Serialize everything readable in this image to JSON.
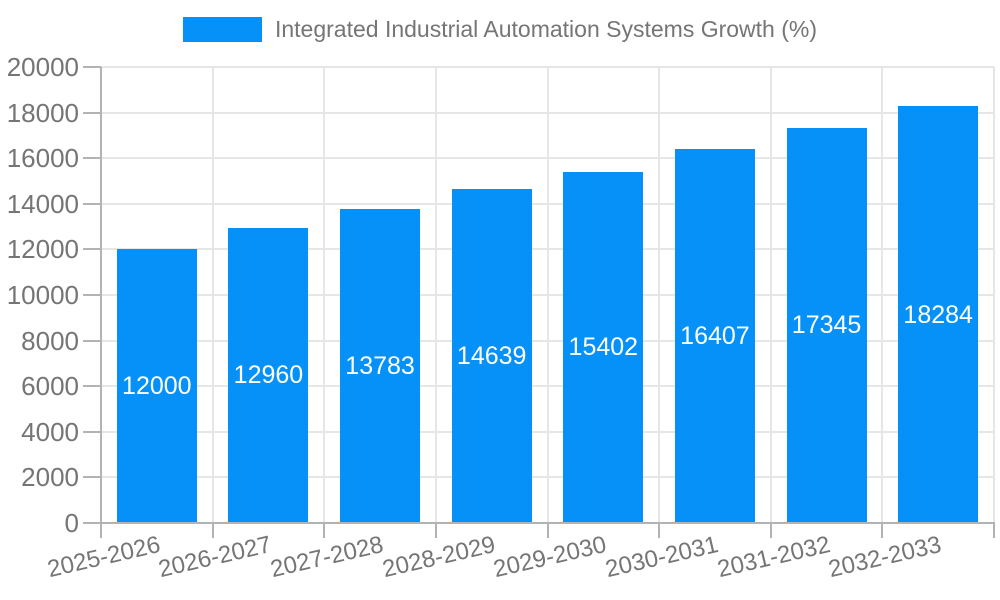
{
  "chart_data": {
    "type": "bar",
    "title": "Integrated Industrial Automation Systems Growth (%)",
    "categories": [
      "2025-2026",
      "2026-2027",
      "2027-2028",
      "2028-2029",
      "2029-2030",
      "2030-2031",
      "2031-2032",
      "2032-2033"
    ],
    "values": [
      12000,
      12960,
      13783,
      14639,
      15402,
      16407,
      17345,
      18284
    ],
    "value_labels": [
      "12000",
      "12960",
      "13783",
      "14639",
      "15402",
      "16407",
      "17345",
      "18284"
    ],
    "xlabel": "",
    "ylabel": "",
    "ylim": [
      0,
      20000
    ],
    "ytick_step": 2000,
    "yticks": [
      "0",
      "2000",
      "4000",
      "6000",
      "8000",
      "10000",
      "12000",
      "14000",
      "16000",
      "18000",
      "20000"
    ],
    "grid": true,
    "legend_position": "top-center",
    "value_label_position": "inside-middle",
    "style": {
      "bar_color": "#0591F8",
      "grid_color": "#E6E6E6",
      "axis_color": "#B3B3B3",
      "tick_text_color": "#757575",
      "legend_text_color": "#757575",
      "value_label_color": "#FFFFFF",
      "background_color": "#FFFFFF"
    }
  }
}
